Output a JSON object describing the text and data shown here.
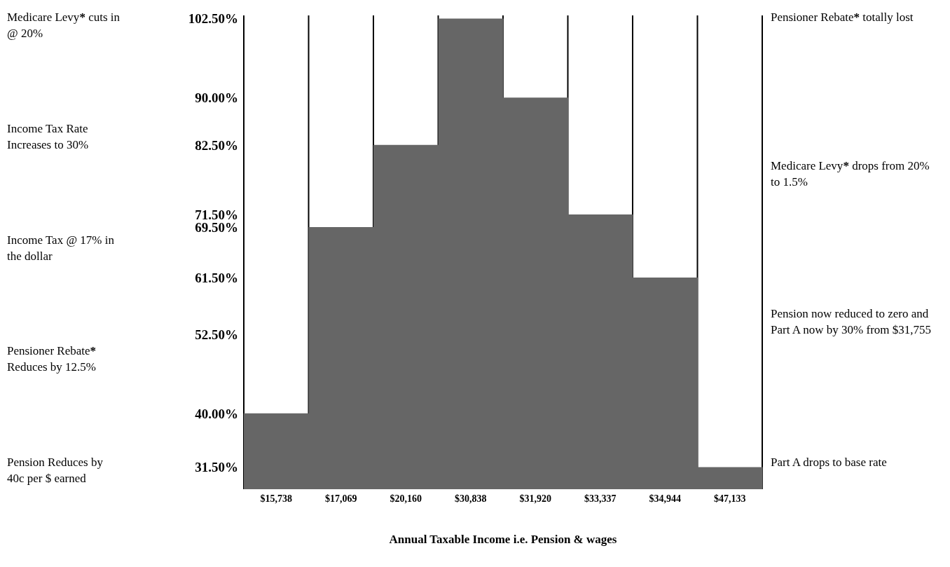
{
  "chart_data": {
    "type": "bar",
    "xlabel": "Annual Taxable Income i.e. Pension & wages",
    "categories": [
      "$15,738",
      "$17,069",
      "$20,160",
      "$30,838",
      "$31,920",
      "$33,337",
      "$34,944",
      "$47,133"
    ],
    "values": [
      40,
      69.5,
      82.5,
      102.5,
      90,
      71.5,
      61.5,
      31.5
    ],
    "color": "#666666",
    "ylim": [
      28,
      103
    ],
    "yticks": [
      {
        "value": 102.5,
        "label": "102.50%"
      },
      {
        "value": 90,
        "label": "90.00%"
      },
      {
        "value": 82.5,
        "label": "82.50%"
      },
      {
        "value": 71.5,
        "label": "71.50%"
      },
      {
        "value": 69.5,
        "label": "69.50%"
      },
      {
        "value": 61.5,
        "label": "61.50%"
      },
      {
        "value": 52.5,
        "label": "52.50%"
      },
      {
        "value": 40,
        "label": "40.00%"
      },
      {
        "value": 31.5,
        "label": "31.50%"
      }
    ],
    "grid": "x",
    "annotations": [
      "Medicare Levy* cuts in @ 20%",
      "Income Tax Rate Increases to 30%",
      "Income Tax @ 17% in the dollar",
      "Pensioner Rebate* Reduces by 12.5%",
      "Pension Reduces by 40c per $ earned",
      "Pensioner Rebate* totally lost",
      "Medicare Levy* drops from 20% to 1.5%",
      "Pension now reduced to zero and Part A now by 30% from $31,755",
      "Part A drops to base rate"
    ]
  }
}
